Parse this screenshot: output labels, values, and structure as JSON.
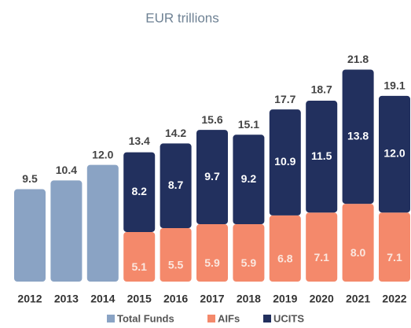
{
  "chart_data": {
    "type": "stacked_bar",
    "subtitle": "EUR trillions",
    "categories": [
      "2012",
      "2013",
      "2014",
      "2015",
      "2016",
      "2017",
      "2018",
      "2019",
      "2020",
      "2021",
      "2022"
    ],
    "series": [
      {
        "name": "Total Funds",
        "color": "#8aa3c4",
        "values": [
          9.5,
          10.4,
          12.0,
          null,
          null,
          null,
          null,
          null,
          null,
          null,
          null
        ],
        "value_labels": [
          "9.5",
          "10.4",
          "12.0",
          null,
          null,
          null,
          null,
          null,
          null,
          null,
          null
        ]
      },
      {
        "name": "AIFs",
        "color": "#f4896b",
        "values": [
          null,
          null,
          null,
          5.1,
          5.5,
          5.9,
          5.9,
          6.8,
          7.1,
          8.0,
          7.1
        ],
        "value_labels": [
          null,
          null,
          null,
          "5.1",
          "5.5",
          "5.9",
          "5.9",
          "6.8",
          "7.1",
          "8.0",
          "7.1"
        ]
      },
      {
        "name": "UCITS",
        "color": "#22305e",
        "values": [
          null,
          null,
          null,
          8.2,
          8.7,
          9.7,
          9.2,
          10.9,
          11.5,
          13.8,
          12.0
        ],
        "value_labels": [
          null,
          null,
          null,
          "8.2",
          "8.7",
          "9.7",
          "9.2",
          "10.9",
          "11.5",
          "13.8",
          "12.0"
        ]
      }
    ],
    "totals": {
      "values": [
        null,
        null,
        null,
        13.4,
        14.2,
        15.6,
        15.1,
        17.7,
        18.7,
        21.8,
        19.1
      ],
      "value_labels": [
        null,
        null,
        null,
        "13.4",
        "14.2",
        "15.6",
        "15.1",
        "17.7",
        "18.7",
        "21.8",
        "19.1"
      ]
    },
    "ylim": [
      0,
      22
    ]
  }
}
